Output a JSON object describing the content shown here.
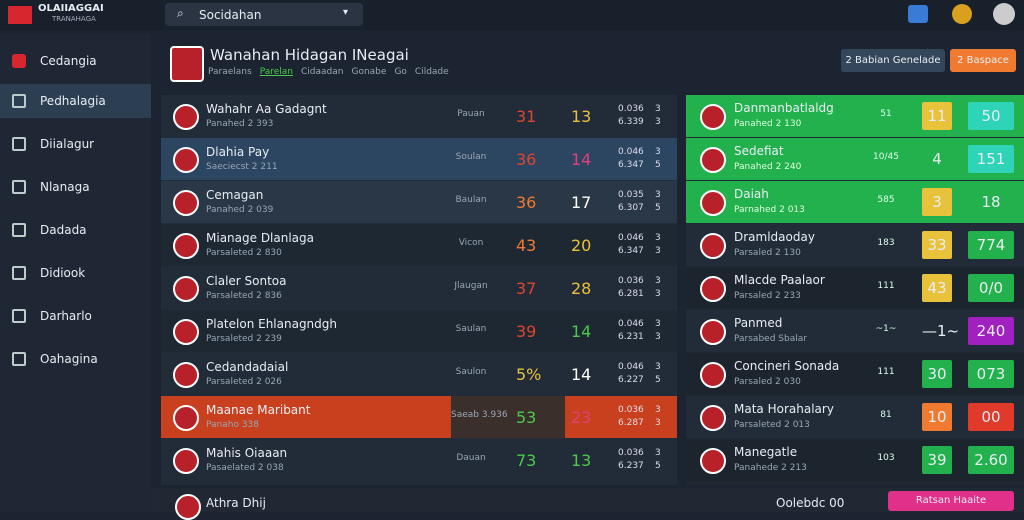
{
  "topbar": {
    "brand": "OLAIIAGGAI",
    "brand_sub": "TRANAHAGA",
    "search": "Socidahan"
  },
  "sidebar": {
    "items": [
      "Cedangia",
      "Pedhalagia",
      "Diialagur",
      "Nlanaga",
      "Dadada",
      "Didiook",
      "Darharlo",
      "Oahagina"
    ]
  },
  "header": {
    "title": "Wanahan Hidagan INeagai",
    "subtitle": [
      "Paraelans",
      "Parelan",
      "Cidaadan",
      "Gonabe",
      "Go",
      "Cildade"
    ],
    "buttons": [
      "2 Babian Genelade",
      "2 Baspace"
    ]
  },
  "left_table": {
    "rows": [
      {
        "name": "Wahahr Aa Gadagnt",
        "sub": "Panahed 2 393",
        "mid": "Pauan",
        "a": "31",
        "a_color": "#e0452f",
        "b": "13",
        "b_color": "#e8c23a",
        "s1": "0.036",
        "s2": "6.339",
        "r1": "3",
        "r2": "3"
      },
      {
        "name": "Dlahia Pay",
        "sub": "Saeciecst 2 211",
        "mid": "Soulan",
        "a": "36",
        "a_color": "#e0452f",
        "b": "14",
        "b_color": "#e0407a",
        "s1": "0.046",
        "s2": "6.347",
        "r1": "3",
        "r2": "5"
      },
      {
        "name": "Cemagan",
        "sub": "Panahed 2 039",
        "mid": "Baulan",
        "a": "36",
        "a_color": "#f07a30",
        "b": "17",
        "b_color": "#ffffff",
        "s1": "0.035",
        "s2": "6.307",
        "r1": "3",
        "r2": "5"
      },
      {
        "name": "Mianage Dlanlaga",
        "sub": "Parsaleted 2 830",
        "mid": "Vicon",
        "a": "43",
        "a_color": "#f07a30",
        "b": "20",
        "b_color": "#e8c23a",
        "s1": "0.046",
        "s2": "6.347",
        "r1": "3",
        "r2": "3"
      },
      {
        "name": "Claler Sontoa",
        "sub": "Parsaleted 2 836",
        "mid": "Jlaugan",
        "a": "37",
        "a_color": "#e0452f",
        "b": "28",
        "b_color": "#e8c23a",
        "s1": "0.036",
        "s2": "6.281",
        "r1": "3",
        "r2": "3"
      },
      {
        "name": "Platelon Ehlanagndgh",
        "sub": "Parsaleted 2 239",
        "mid": "Saulan",
        "a": "39",
        "a_color": "#e0452f",
        "b": "14",
        "b_color": "#4cc94a",
        "s1": "0.046",
        "s2": "6.231",
        "r1": "3",
        "r2": "3"
      },
      {
        "name": "Cedandadaial",
        "sub": "Parsaleted 2 026",
        "mid": "Saulon",
        "a": "5%",
        "a_color": "#e8c23a",
        "b": "14",
        "b_color": "#ffffff",
        "s1": "0.046",
        "s2": "6.227",
        "r1": "3",
        "r2": "5"
      },
      {
        "name": "Maanae Maribant",
        "sub": "Panaho 338",
        "mid": "Saeab 3.936",
        "a": "53",
        "a_color": "#4cc94a",
        "b": "23",
        "b_color": "#e0407a",
        "s1": "0.036",
        "s2": "6.287",
        "r1": "3",
        "r2": "3"
      },
      {
        "name": "Mahis Oiaaan",
        "sub": "Pasaelated 2 038",
        "mid": "Dauan",
        "a": "73",
        "a_color": "#4cc94a",
        "b": "13",
        "b_color": "#4cc94a",
        "s1": "0.036",
        "s2": "6.237",
        "r1": "3",
        "r2": "5"
      }
    ]
  },
  "right_table": {
    "rows": [
      {
        "name": "Danmanbatlaldg",
        "sub": "Panahed 2 130",
        "small": "51",
        "box1": "11",
        "box1_color": "#e8c23a",
        "box2": "50",
        "box2_color": "#2fd3b8"
      },
      {
        "name": "Sedefiat",
        "sub": "Panahed 2 240",
        "small": "10/45",
        "box1": "4",
        "box1_color": "transparent",
        "box2": "151",
        "box2_color": "#2fd3b8"
      },
      {
        "name": "Daiah",
        "sub": "Parnahed 2 013",
        "small": "585",
        "box1": "3",
        "box1_color": "#e8c23a",
        "box2": "18",
        "box2_color": "transparent"
      },
      {
        "name": "Dramldaoday",
        "sub": "Parsaled 2 130",
        "small": "183",
        "box1": "33",
        "box1_color": "#e8c23a",
        "box2": "774",
        "box2_color": "#22b14c"
      },
      {
        "name": "Mlacde Paalaor",
        "sub": "Parsaled 2 233",
        "small": "111",
        "box1": "43",
        "box1_color": "#e8c23a",
        "box2": "0/0",
        "box2_color": "#22b14c"
      },
      {
        "name": "Panmed",
        "sub": "Parsabed Sbalar",
        "small": "~1~",
        "box1": "—1~",
        "box1_color": "transparent",
        "box2": "240",
        "box2_color": "#a020c0"
      },
      {
        "name": "Concineri Sonada",
        "sub": "Parsaled 2 030",
        "small": "111",
        "box1": "30",
        "box1_color": "#22b14c",
        "box2": "073",
        "box2_color": "#22b14c"
      },
      {
        "name": "Mata Horahalary",
        "sub": "Parsaleted 2 013",
        "small": "81",
        "box1": "10",
        "box1_color": "#f07a30",
        "box2": "00",
        "box2_color": "#e03a2a"
      },
      {
        "name": "Manegatle",
        "sub": "Panahede 2 213",
        "small": "103",
        "box1": "39",
        "box1_color": "#22b14c",
        "box2": "2.60",
        "box2_color": "#22b14c"
      }
    ]
  },
  "footer": {
    "name": "Athra Dhij",
    "status": "Oolebdc 00",
    "button": "Ratsan Haaite"
  }
}
